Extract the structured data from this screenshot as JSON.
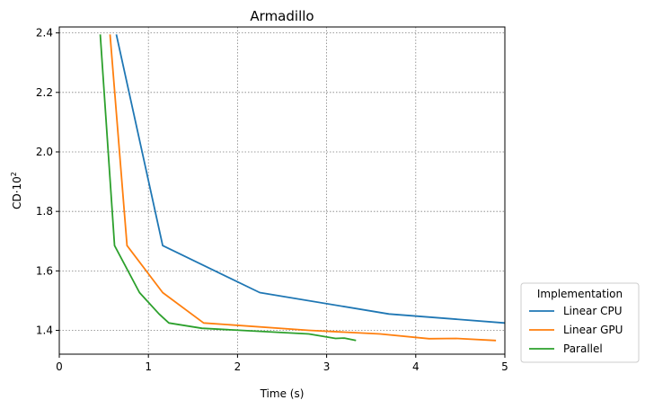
{
  "chart_data": {
    "type": "line",
    "title": "Armadillo",
    "xlabel": "Time (s)",
    "ylabel_base": "CD·10",
    "ylabel_exp": "2",
    "xlim": [
      0,
      5
    ],
    "ylim": [
      1.32,
      2.42
    ],
    "xticks": [
      0,
      1,
      2,
      3,
      4,
      5
    ],
    "yticks": [
      1.4,
      1.6,
      1.8,
      2.0,
      2.2,
      2.4
    ],
    "xtick_labels": [
      "0",
      "1",
      "2",
      "3",
      "4",
      "5"
    ],
    "ytick_labels": [
      "1.4",
      "1.6",
      "1.8",
      "2.0",
      "2.2",
      "2.4"
    ],
    "grid": true,
    "legend": {
      "title": "Implementation",
      "placement": "outside-lower-right"
    },
    "series": [
      {
        "name": "Linear CPU",
        "color": "#1f77b4",
        "x": [
          0.64,
          1.16,
          2.25,
          3.7,
          5.0
        ],
        "y": [
          2.395,
          1.685,
          1.527,
          1.455,
          1.425
        ]
      },
      {
        "name": "Linear GPU",
        "color": "#ff7f0e",
        "x": [
          0.57,
          0.76,
          1.16,
          1.62,
          2.8,
          3.6,
          4.15,
          4.45,
          4.9
        ],
        "y": [
          2.395,
          1.685,
          1.527,
          1.425,
          1.4,
          1.388,
          1.372,
          1.373,
          1.366
        ]
      },
      {
        "name": "Parallel",
        "color": "#2ca02c",
        "x": [
          0.46,
          0.62,
          0.9,
          1.12,
          1.23,
          1.6,
          2.8,
          3.1,
          3.2,
          3.33
        ],
        "y": [
          2.395,
          1.685,
          1.527,
          1.455,
          1.425,
          1.407,
          1.388,
          1.373,
          1.374,
          1.366
        ]
      }
    ]
  }
}
